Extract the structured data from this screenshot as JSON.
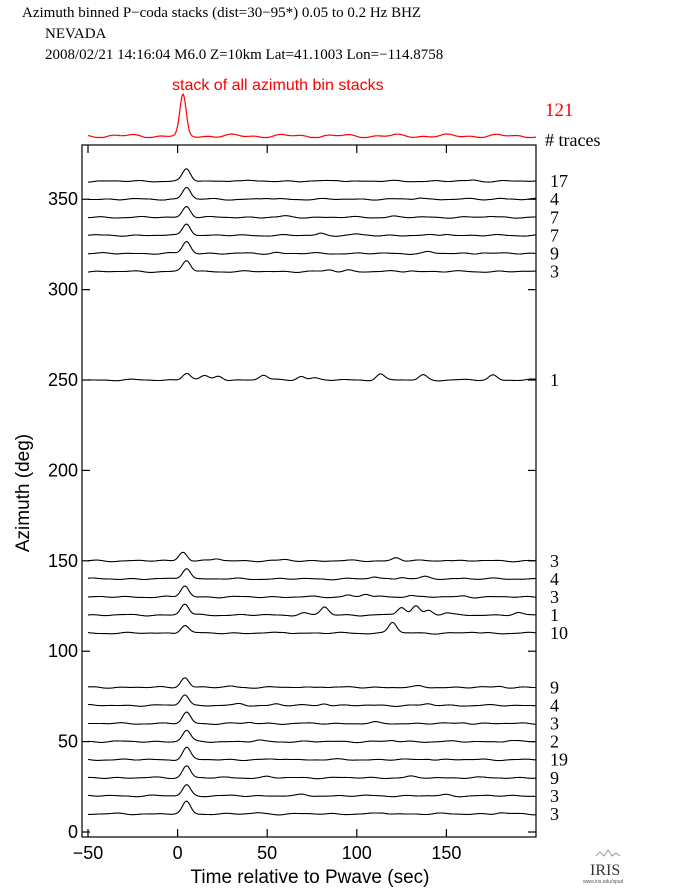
{
  "header": {
    "line1": "Azimuth binned P−coda stacks (dist=30−95*)  0.05 to 0.2 Hz  BHZ",
    "line2": "NEVADA",
    "line3": "2008/02/21  14:16:04  M6.0  Z=10km Lat=41.1003 Lon=−114.8758"
  },
  "logo": {
    "text": "IRIS",
    "subtext": "www.iris.edu/spud"
  },
  "colors": {
    "stack": "#ff0000",
    "trace": "#000000",
    "frame": "#000000"
  },
  "chart_data": {
    "type": "line",
    "xlabel": "Time relative to Pwave (sec)",
    "ylabel": "Azimuth (deg)",
    "xlim": [
      -50,
      200
    ],
    "ylim": [
      0,
      380
    ],
    "xticks": [
      -50,
      0,
      50,
      100,
      150
    ],
    "yticks": [
      0,
      50,
      100,
      150,
      200,
      250,
      300,
      350
    ],
    "xtick_labels": [
      "−50",
      "0",
      "50",
      "100",
      "150"
    ],
    "stack": {
      "label": "stack of all azimuth bin stacks",
      "count": "121",
      "count_header": "# traces",
      "main_peak_time": 3,
      "main_peak_amp": 1.0
    },
    "traces": [
      {
        "azimuth": 360,
        "count": "17",
        "peaks": [
          [
            5,
            12
          ],
          [
            32,
            1
          ],
          [
            90,
            1
          ],
          [
            165,
            1
          ]
        ]
      },
      {
        "azimuth": 350,
        "count": "4",
        "peaks": [
          [
            5,
            12
          ],
          [
            50,
            1
          ],
          [
            135,
            1.5
          ],
          [
            180,
            1
          ]
        ]
      },
      {
        "azimuth": 340,
        "count": "7",
        "peaks": [
          [
            5,
            11
          ],
          [
            60,
            1
          ],
          [
            120,
            1
          ],
          [
            175,
            1
          ]
        ]
      },
      {
        "azimuth": 330,
        "count": "7",
        "peaks": [
          [
            5,
            12
          ],
          [
            80,
            2
          ],
          [
            100,
            1
          ],
          [
            150,
            1.5
          ]
        ]
      },
      {
        "azimuth": 320,
        "count": "9",
        "peaks": [
          [
            5,
            12
          ],
          [
            55,
            1
          ],
          [
            140,
            1.5
          ],
          [
            170,
            1
          ]
        ]
      },
      {
        "azimuth": 310,
        "count": "3",
        "peaks": [
          [
            5,
            11
          ],
          [
            85,
            1.5
          ],
          [
            95,
            1.5
          ],
          [
            130,
            1
          ]
        ]
      },
      {
        "azimuth": 250,
        "count": "1",
        "peaks": [
          [
            5,
            7
          ],
          [
            15,
            4
          ],
          [
            23,
            4
          ],
          [
            48,
            5
          ],
          [
            69,
            4
          ],
          [
            76,
            2
          ],
          [
            113,
            6
          ],
          [
            137,
            5
          ],
          [
            176,
            5
          ]
        ]
      },
      {
        "azimuth": 150,
        "count": "3",
        "peaks": [
          [
            3,
            9
          ],
          [
            22,
            2
          ],
          [
            60,
            1
          ],
          [
            122,
            3
          ],
          [
            150,
            1
          ]
        ]
      },
      {
        "azimuth": 140,
        "count": "4",
        "peaks": [
          [
            5,
            11
          ],
          [
            110,
            2
          ],
          [
            125,
            2
          ],
          [
            138,
            2
          ],
          [
            160,
            1
          ]
        ]
      },
      {
        "azimuth": 130,
        "count": "3",
        "peaks": [
          [
            4,
            11
          ],
          [
            95,
            2
          ],
          [
            105,
            3
          ],
          [
            130,
            2
          ],
          [
            160,
            1
          ]
        ]
      },
      {
        "azimuth": 120,
        "count": "1",
        "peaks": [
          [
            4,
            11
          ],
          [
            70,
            2
          ],
          [
            82,
            8
          ],
          [
            125,
            8
          ],
          [
            133,
            9
          ],
          [
            140,
            5
          ],
          [
            150,
            2
          ],
          [
            190,
            2
          ]
        ]
      },
      {
        "azimuth": 110,
        "count": "10",
        "peaks": [
          [
            4,
            8
          ],
          [
            60,
            1
          ],
          [
            120,
            11
          ],
          [
            165,
            1
          ]
        ]
      },
      {
        "azimuth": 80,
        "count": "9",
        "peaks": [
          [
            4,
            10
          ],
          [
            30,
            1
          ],
          [
            80,
            1
          ],
          [
            135,
            1
          ],
          [
            180,
            1
          ]
        ]
      },
      {
        "azimuth": 70,
        "count": "4",
        "peaks": [
          [
            4,
            11
          ],
          [
            35,
            1.5
          ],
          [
            55,
            1.5
          ],
          [
            82,
            2
          ],
          [
            140,
            1.5
          ]
        ]
      },
      {
        "azimuth": 60,
        "count": "3",
        "peaks": [
          [
            5,
            11
          ],
          [
            40,
            1
          ],
          [
            110,
            1
          ],
          [
            160,
            1
          ]
        ]
      },
      {
        "azimuth": 50,
        "count": "2",
        "peaks": [
          [
            5,
            11
          ],
          [
            45,
            1
          ],
          [
            120,
            1
          ],
          [
            185,
            1
          ]
        ]
      },
      {
        "azimuth": 40,
        "count": "19",
        "peaks": [
          [
            5,
            12
          ],
          [
            60,
            1
          ],
          [
            140,
            1
          ]
        ]
      },
      {
        "azimuth": 30,
        "count": "9",
        "peaks": [
          [
            5,
            12
          ],
          [
            50,
            1
          ],
          [
            130,
            1
          ]
        ]
      },
      {
        "azimuth": 20,
        "count": "3",
        "peaks": [
          [
            5,
            11
          ],
          [
            70,
            1
          ],
          [
            150,
            1
          ]
        ]
      },
      {
        "azimuth": 10,
        "count": "3",
        "peaks": [
          [
            5,
            12
          ],
          [
            45,
            1
          ],
          [
            115,
            1
          ],
          [
            180,
            1
          ]
        ]
      }
    ]
  }
}
